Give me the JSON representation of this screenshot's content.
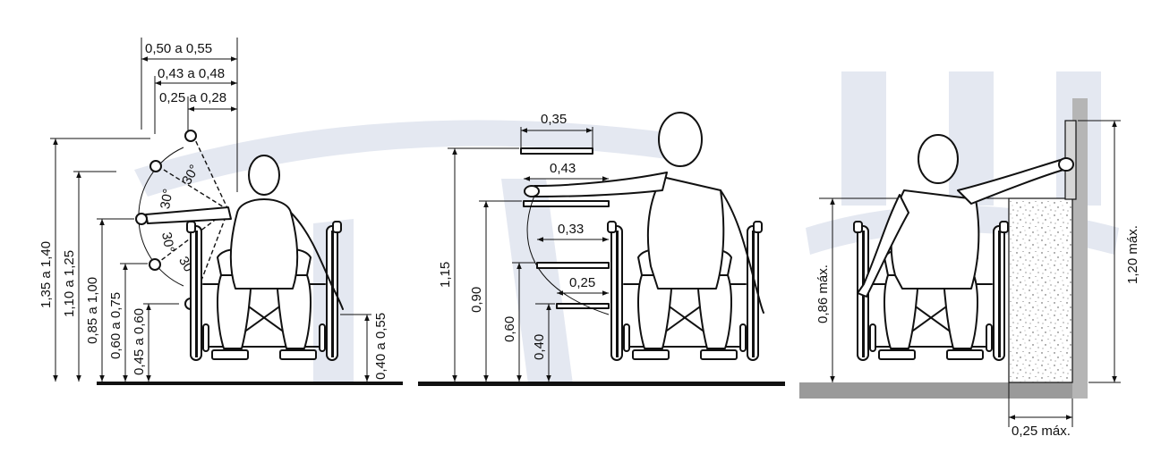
{
  "colors": {
    "ink": "#111111",
    "watermark": "#e4e8f1",
    "wall": "#b5b5b5",
    "floor": "#9a9a9a",
    "counter_fill": "#ffffff"
  },
  "panel1": {
    "top_dims": [
      "0,50 a 0,55",
      "0,43 a 0,48",
      "0,25 a 0,28"
    ],
    "heights": [
      "1,35 a 1,40",
      "1,10 a 1,25",
      "0,85 a 1,00",
      "0,60 a 0,75",
      "0,45 a 0,60"
    ],
    "right_height": "0,40 a 0,55",
    "angle": "30°"
  },
  "panel2": {
    "depths": [
      "0,35",
      "0,43",
      "0,33",
      "0,25"
    ],
    "heights": [
      "1,15",
      "0,90",
      "0,60",
      "0,40"
    ]
  },
  "panel3": {
    "left_height": "0,86 máx.",
    "right_height": "1,20 máx.",
    "bottom_dim": "0,25 máx."
  }
}
